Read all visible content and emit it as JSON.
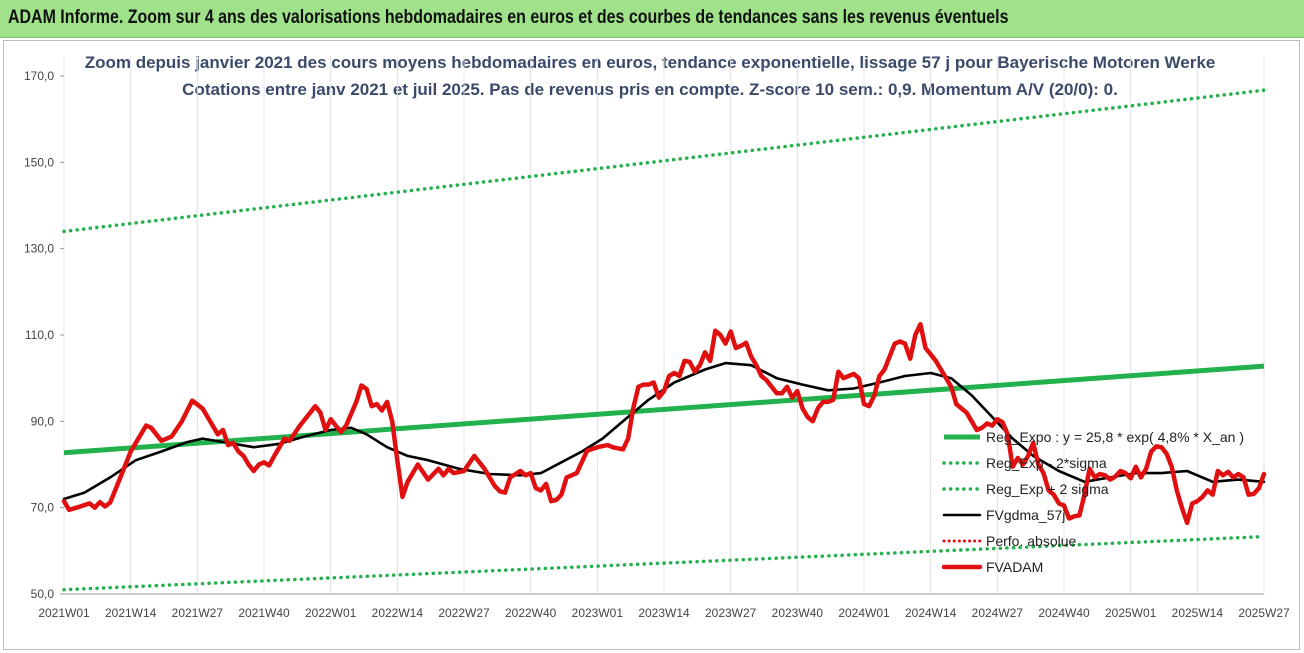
{
  "banner": {
    "text": "ADAM Informe. Zoom sur 4 ans des valorisations hebdomadaires en euros et des courbes de tendances sans les revenus éventuels"
  },
  "colors": {
    "banner_bg": "#9fe28a",
    "regression": "#22b14c",
    "sigma_bands": "#22b14c",
    "moving_average": "#000000",
    "perfo": "#e01010",
    "price": "#e01010",
    "title": "#3b4a6b",
    "grid": "#e0e0e0"
  },
  "chart_data": {
    "type": "line",
    "title": "Zoom depuis janvier 2021 des cours moyens hebdomadaires en euros, tendance exponentielle, lissage 57 j pour Bayerische Motoren Werke",
    "subtitle": "Cotations entre janv 2021 et juil 2025. Pas de revenus pris en compte. Z-score 10 sem.: 0,9. Momentum A/V (20/0): 0.",
    "xlabel": "",
    "ylabel": "",
    "ylim": [
      50,
      170
    ],
    "yticks": [
      "50,0",
      "70,0",
      "90,0",
      "110,0",
      "130,0",
      "150,0",
      "170,0"
    ],
    "xlim": [
      1,
      235
    ],
    "x_ticks": [
      {
        "week": 1,
        "label": "2021W01"
      },
      {
        "week": 14,
        "label": "2021W14"
      },
      {
        "week": 27,
        "label": "2021W27"
      },
      {
        "week": 40,
        "label": "2021W40"
      },
      {
        "week": 53,
        "label": "2022W01"
      },
      {
        "week": 66,
        "label": "2022W14"
      },
      {
        "week": 79,
        "label": "2022W27"
      },
      {
        "week": 92,
        "label": "2022W40"
      },
      {
        "week": 105,
        "label": "2023W01"
      },
      {
        "week": 118,
        "label": "2023W14"
      },
      {
        "week": 131,
        "label": "2023W27"
      },
      {
        "week": 144,
        "label": "2023W40"
      },
      {
        "week": 157,
        "label": "2024W01"
      },
      {
        "week": 170,
        "label": "2024W14"
      },
      {
        "week": 183,
        "label": "2024W27"
      },
      {
        "week": 196,
        "label": "2024W40"
      },
      {
        "week": 209,
        "label": "2025W01"
      },
      {
        "week": 222,
        "label": "2025W14"
      },
      {
        "week": 235,
        "label": "2025W27"
      }
    ],
    "grid": "vertical",
    "legend_position": "right",
    "series": [
      {
        "name": "Reg_Expo : y = 25,8 * exp( 4,8% *  X_an )",
        "style": "solid-thick",
        "points": [
          [
            1,
            82.7
          ],
          [
            235,
            102.8
          ]
        ]
      },
      {
        "name": "Reg_Exp - 2*sigma",
        "style": "dotted",
        "points": [
          [
            1,
            51.0
          ],
          [
            235,
            63.3
          ]
        ]
      },
      {
        "name": "Reg_Exp + 2 sigma",
        "style": "dotted",
        "points": [
          [
            1,
            134.0
          ],
          [
            235,
            166.7
          ]
        ]
      },
      {
        "name": "FVgdma_57j",
        "style": "solid",
        "points": [
          [
            1,
            72
          ],
          [
            5,
            73.5
          ],
          [
            10,
            77
          ],
          [
            15,
            81
          ],
          [
            20,
            83
          ],
          [
            25,
            85.2
          ],
          [
            28,
            86
          ],
          [
            33,
            85
          ],
          [
            38,
            84
          ],
          [
            43,
            84.8
          ],
          [
            48,
            86.5
          ],
          [
            53,
            88
          ],
          [
            57,
            88.5
          ],
          [
            60,
            87
          ],
          [
            64,
            84
          ],
          [
            68,
            82
          ],
          [
            72,
            81
          ],
          [
            78,
            79
          ],
          [
            84,
            77.8
          ],
          [
            90,
            77.5
          ],
          [
            94,
            78
          ],
          [
            98,
            80.5
          ],
          [
            102,
            83
          ],
          [
            106,
            86
          ],
          [
            110,
            90
          ],
          [
            115,
            95
          ],
          [
            120,
            99
          ],
          [
            126,
            102
          ],
          [
            130,
            103.5
          ],
          [
            135,
            103
          ],
          [
            140,
            100
          ],
          [
            145,
            98.5
          ],
          [
            150,
            97.2
          ],
          [
            155,
            97.6
          ],
          [
            160,
            99
          ],
          [
            165,
            100.5
          ],
          [
            170,
            101.2
          ],
          [
            174,
            100
          ],
          [
            178,
            96
          ],
          [
            182,
            91
          ],
          [
            186,
            86
          ],
          [
            190,
            82
          ],
          [
            195,
            78.5
          ],
          [
            200,
            76
          ],
          [
            205,
            77
          ],
          [
            210,
            78
          ],
          [
            215,
            78
          ],
          [
            220,
            78.5
          ],
          [
            225,
            76
          ],
          [
            230,
            76.5
          ],
          [
            235,
            76
          ]
        ]
      },
      {
        "name": "Perfo. absolue",
        "style": "dotted",
        "points": []
      },
      {
        "name": "FVADAM",
        "style": "solid-thick",
        "points": [
          [
            1,
            71.5
          ],
          [
            2,
            69.5
          ],
          [
            4,
            70.2
          ],
          [
            6,
            71
          ],
          [
            7,
            70
          ],
          [
            8,
            71.3
          ],
          [
            9,
            70.3
          ],
          [
            10,
            71.2
          ],
          [
            12,
            77
          ],
          [
            14,
            83
          ],
          [
            16,
            87
          ],
          [
            17,
            89
          ],
          [
            18,
            88.5
          ],
          [
            20,
            85.5
          ],
          [
            22,
            86.5
          ],
          [
            24,
            90
          ],
          [
            26,
            94.8
          ],
          [
            28,
            93
          ],
          [
            30,
            89
          ],
          [
            31,
            87
          ],
          [
            32,
            88
          ],
          [
            33,
            84.5
          ],
          [
            34,
            85
          ],
          [
            35,
            83
          ],
          [
            36,
            82
          ],
          [
            37,
            80
          ],
          [
            38,
            78.5
          ],
          [
            39,
            80
          ],
          [
            40,
            80.5
          ],
          [
            41,
            79.8
          ],
          [
            42,
            82
          ],
          [
            43,
            84
          ],
          [
            44,
            86
          ],
          [
            45,
            85.5
          ],
          [
            47,
            89
          ],
          [
            49,
            92
          ],
          [
            50,
            93.5
          ],
          [
            51,
            92
          ],
          [
            52,
            88
          ],
          [
            53,
            90.5
          ],
          [
            54,
            89
          ],
          [
            55,
            87.5
          ],
          [
            56,
            89
          ],
          [
            58,
            94.5
          ],
          [
            59,
            98.3
          ],
          [
            60,
            97.5
          ],
          [
            61,
            93.5
          ],
          [
            62,
            94
          ],
          [
            63,
            92.5
          ],
          [
            64,
            94.5
          ],
          [
            65,
            90
          ],
          [
            66,
            81
          ],
          [
            67,
            72.5
          ],
          [
            68,
            76
          ],
          [
            70,
            80
          ],
          [
            72,
            76.5
          ],
          [
            74,
            79
          ],
          [
            75,
            77.5
          ],
          [
            76,
            79
          ],
          [
            77,
            78
          ],
          [
            79,
            78.5
          ],
          [
            81,
            82
          ],
          [
            83,
            79
          ],
          [
            85,
            75
          ],
          [
            86,
            73.8
          ],
          [
            87,
            73.5
          ],
          [
            88,
            77
          ],
          [
            90,
            78.5
          ],
          [
            91,
            77.5
          ],
          [
            92,
            78
          ],
          [
            93,
            74.5
          ],
          [
            94,
            74
          ],
          [
            95,
            75.5
          ],
          [
            96,
            71.5
          ],
          [
            97,
            71.8
          ],
          [
            98,
            73
          ],
          [
            99,
            77
          ],
          [
            101,
            78
          ],
          [
            103,
            83.2
          ],
          [
            105,
            84
          ],
          [
            107,
            84.5
          ],
          [
            108,
            84
          ],
          [
            110,
            83.5
          ],
          [
            111,
            86
          ],
          [
            112,
            93
          ],
          [
            113,
            98
          ],
          [
            114,
            98.5
          ],
          [
            115,
            98.5
          ],
          [
            116,
            99
          ],
          [
            117,
            95.5
          ],
          [
            118,
            97
          ],
          [
            119,
            100.5
          ],
          [
            120,
            101.2
          ],
          [
            121,
            100.5
          ],
          [
            122,
            104
          ],
          [
            123,
            103.8
          ],
          [
            124,
            101.5
          ],
          [
            125,
            103
          ],
          [
            126,
            106
          ],
          [
            127,
            104
          ],
          [
            128,
            111
          ],
          [
            129,
            110
          ],
          [
            130,
            108
          ],
          [
            131,
            110.8
          ],
          [
            132,
            107
          ],
          [
            133,
            107.5
          ],
          [
            134,
            108.2
          ],
          [
            135,
            105
          ],
          [
            136,
            103
          ],
          [
            137,
            100.5
          ],
          [
            138,
            99.5
          ],
          [
            139,
            98
          ],
          [
            140,
            96.5
          ],
          [
            141,
            96.5
          ],
          [
            142,
            98
          ],
          [
            143,
            95.5
          ],
          [
            144,
            97
          ],
          [
            145,
            93
          ],
          [
            146,
            91
          ],
          [
            147,
            90
          ],
          [
            148,
            93
          ],
          [
            149,
            94.5
          ],
          [
            150,
            94.5
          ],
          [
            151,
            95
          ],
          [
            152,
            101.5
          ],
          [
            153,
            100
          ],
          [
            154,
            100.5
          ],
          [
            155,
            101
          ],
          [
            156,
            100
          ],
          [
            157,
            94
          ],
          [
            158,
            93.5
          ],
          [
            159,
            96
          ],
          [
            160,
            100.5
          ],
          [
            161,
            102
          ],
          [
            162,
            105
          ],
          [
            163,
            108
          ],
          [
            164,
            108.5
          ],
          [
            165,
            108
          ],
          [
            166,
            104.5
          ],
          [
            167,
            110
          ],
          [
            168,
            112.5
          ],
          [
            169,
            107
          ],
          [
            170,
            105.5
          ],
          [
            171,
            104
          ],
          [
            172,
            102
          ],
          [
            173,
            100
          ],
          [
            174,
            98
          ],
          [
            175,
            94
          ],
          [
            176,
            93
          ],
          [
            177,
            92
          ],
          [
            178,
            90
          ],
          [
            179,
            88
          ],
          [
            180,
            88.5
          ],
          [
            181,
            89.5
          ],
          [
            182,
            89
          ],
          [
            183,
            90.5
          ],
          [
            184,
            89.8
          ],
          [
            185,
            87
          ],
          [
            186,
            79.5
          ],
          [
            187,
            81.5
          ],
          [
            188,
            80
          ],
          [
            189,
            82
          ],
          [
            190,
            85
          ],
          [
            191,
            80
          ],
          [
            192,
            78
          ],
          [
            193,
            74
          ],
          [
            194,
            73
          ],
          [
            195,
            71
          ],
          [
            196,
            70.5
          ],
          [
            197,
            67.5
          ],
          [
            198,
            68
          ],
          [
            199,
            68.2
          ],
          [
            200,
            73
          ],
          [
            201,
            79
          ],
          [
            202,
            77
          ],
          [
            203,
            77.8
          ],
          [
            204,
            77.5
          ],
          [
            205,
            76.5
          ],
          [
            206,
            77.2
          ],
          [
            207,
            78.5
          ],
          [
            208,
            78
          ],
          [
            209,
            76.8
          ],
          [
            210,
            79.5
          ],
          [
            211,
            77
          ],
          [
            212,
            79
          ],
          [
            213,
            83
          ],
          [
            214,
            84.2
          ],
          [
            215,
            84
          ],
          [
            216,
            82.5
          ],
          [
            217,
            79.5
          ],
          [
            218,
            74
          ],
          [
            219,
            70
          ],
          [
            220,
            66.5
          ],
          [
            221,
            71
          ],
          [
            222,
            71.5
          ],
          [
            223,
            72.5
          ],
          [
            224,
            74
          ],
          [
            225,
            73
          ],
          [
            226,
            78.5
          ],
          [
            227,
            77.5
          ],
          [
            228,
            78.3
          ],
          [
            229,
            77
          ],
          [
            230,
            77.8
          ],
          [
            231,
            77
          ],
          [
            232,
            73
          ],
          [
            233,
            73.2
          ],
          [
            234,
            74.5
          ],
          [
            235,
            77.8
          ]
        ]
      }
    ]
  }
}
